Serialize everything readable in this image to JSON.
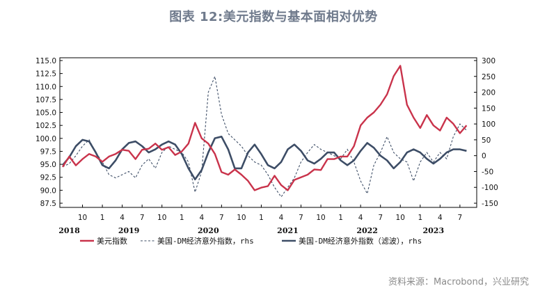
{
  "title": "图表 12:美元指数与基本面相对优势",
  "source": "资料来源：Macrobond，兴业研究",
  "colors": {
    "dxy": "#c9334b",
    "surprise": "#3d4d66",
    "filtered": "#3d4d66",
    "title": "#6f7a8c"
  },
  "chart_data": {
    "type": "line",
    "x_axis": {
      "month_ticks": [
        "10",
        "1",
        "4",
        "7",
        "10",
        "1",
        "4",
        "7",
        "10",
        "1",
        "4",
        "7",
        "10",
        "1",
        "4",
        "7",
        "10",
        "1",
        "4",
        "7"
      ],
      "years": [
        "2018",
        "2019",
        "2020",
        "2021",
        "2022",
        "2023"
      ]
    },
    "y_left": {
      "min": 87.5,
      "max": 115.0,
      "ticks": [
        "115.0",
        "112.5",
        "110.0",
        "107.5",
        "105.0",
        "102.5",
        "100.0",
        "97.5",
        "95.0",
        "92.5",
        "90.0",
        "87.5"
      ]
    },
    "y_right": {
      "min": -150,
      "max": 300,
      "ticks": [
        "300",
        "250",
        "200",
        "150",
        "100",
        "50",
        "0",
        "-50",
        "-100",
        "-150"
      ]
    },
    "series": [
      {
        "name": "美元指数",
        "axis": "left",
        "style": "solid",
        "points": [
          [
            "2018-07",
            94.5
          ],
          [
            "2018-08",
            96.5
          ],
          [
            "2018-09",
            94.8
          ],
          [
            "2018-10",
            96.0
          ],
          [
            "2018-11",
            97.0
          ],
          [
            "2018-12",
            96.5
          ],
          [
            "2019-01",
            95.5
          ],
          [
            "2019-02",
            96.5
          ],
          [
            "2019-03",
            97.0
          ],
          [
            "2019-04",
            97.8
          ],
          [
            "2019-05",
            97.6
          ],
          [
            "2019-06",
            96.0
          ],
          [
            "2019-07",
            97.8
          ],
          [
            "2019-08",
            98.0
          ],
          [
            "2019-09",
            99.0
          ],
          [
            "2019-10",
            97.8
          ],
          [
            "2019-11",
            98.3
          ],
          [
            "2019-12",
            96.8
          ],
          [
            "2020-01",
            97.5
          ],
          [
            "2020-02",
            99.0
          ],
          [
            "2020-03",
            103.0
          ],
          [
            "2020-04",
            100.0
          ],
          [
            "2020-05",
            99.0
          ],
          [
            "2020-06",
            97.0
          ],
          [
            "2020-07",
            93.5
          ],
          [
            "2020-08",
            93.0
          ],
          [
            "2020-09",
            94.0
          ],
          [
            "2020-10",
            93.0
          ],
          [
            "2020-11",
            91.8
          ],
          [
            "2020-12",
            90.0
          ],
          [
            "2021-01",
            90.5
          ],
          [
            "2021-02",
            90.8
          ],
          [
            "2021-03",
            92.8
          ],
          [
            "2021-04",
            91.0
          ],
          [
            "2021-05",
            90.0
          ],
          [
            "2021-06",
            92.0
          ],
          [
            "2021-07",
            92.5
          ],
          [
            "2021-08",
            93.0
          ],
          [
            "2021-09",
            94.0
          ],
          [
            "2021-10",
            93.9
          ],
          [
            "2021-11",
            96.0
          ],
          [
            "2021-12",
            96.0
          ],
          [
            "2022-01",
            96.5
          ],
          [
            "2022-02",
            96.5
          ],
          [
            "2022-03",
            98.5
          ],
          [
            "2022-04",
            102.5
          ],
          [
            "2022-05",
            104.0
          ],
          [
            "2022-06",
            105.0
          ],
          [
            "2022-07",
            106.5
          ],
          [
            "2022-08",
            108.5
          ],
          [
            "2022-09",
            112.0
          ],
          [
            "2022-10",
            114.0
          ],
          [
            "2022-11",
            106.5
          ],
          [
            "2022-12",
            104.0
          ],
          [
            "2023-01",
            102.0
          ],
          [
            "2023-02",
            104.5
          ],
          [
            "2023-03",
            102.5
          ],
          [
            "2023-04",
            101.5
          ],
          [
            "2023-05",
            104.0
          ],
          [
            "2023-06",
            102.8
          ],
          [
            "2023-07",
            101.0
          ],
          [
            "2023-08",
            102.5
          ]
        ]
      },
      {
        "name": "美国-DM经济意外指数，rhs",
        "axis": "right",
        "style": "dashed",
        "points": [
          [
            "2018-07",
            -35
          ],
          [
            "2018-08",
            -25
          ],
          [
            "2018-09",
            0
          ],
          [
            "2018-10",
            30
          ],
          [
            "2018-11",
            50
          ],
          [
            "2018-12",
            10
          ],
          [
            "2019-01",
            -20
          ],
          [
            "2019-02",
            -60
          ],
          [
            "2019-03",
            -70
          ],
          [
            "2019-04",
            -60
          ],
          [
            "2019-05",
            -50
          ],
          [
            "2019-06",
            -70
          ],
          [
            "2019-07",
            -30
          ],
          [
            "2019-08",
            -10
          ],
          [
            "2019-09",
            -40
          ],
          [
            "2019-10",
            10
          ],
          [
            "2019-11",
            30
          ],
          [
            "2019-12",
            20
          ],
          [
            "2020-01",
            10
          ],
          [
            "2020-02",
            -20
          ],
          [
            "2020-03",
            -115
          ],
          [
            "2020-04",
            -50
          ],
          [
            "2020-05",
            200
          ],
          [
            "2020-06",
            250
          ],
          [
            "2020-07",
            130
          ],
          [
            "2020-08",
            70
          ],
          [
            "2020-09",
            50
          ],
          [
            "2020-10",
            30
          ],
          [
            "2020-11",
            0
          ],
          [
            "2020-12",
            -20
          ],
          [
            "2021-01",
            -30
          ],
          [
            "2021-02",
            -60
          ],
          [
            "2021-03",
            -100
          ],
          [
            "2021-04",
            -130
          ],
          [
            "2021-05",
            -100
          ],
          [
            "2021-06",
            -70
          ],
          [
            "2021-07",
            -20
          ],
          [
            "2021-08",
            10
          ],
          [
            "2021-09",
            35
          ],
          [
            "2021-10",
            20
          ],
          [
            "2021-11",
            10
          ],
          [
            "2021-12",
            0
          ],
          [
            "2022-01",
            -10
          ],
          [
            "2022-02",
            20
          ],
          [
            "2022-03",
            -20
          ],
          [
            "2022-04",
            -80
          ],
          [
            "2022-05",
            -120
          ],
          [
            "2022-06",
            -30
          ],
          [
            "2022-07",
            10
          ],
          [
            "2022-08",
            60
          ],
          [
            "2022-09",
            10
          ],
          [
            "2022-10",
            -10
          ],
          [
            "2022-11",
            -20
          ],
          [
            "2022-12",
            -80
          ],
          [
            "2023-01",
            -20
          ],
          [
            "2023-02",
            10
          ],
          [
            "2023-03",
            -20
          ],
          [
            "2023-04",
            10
          ],
          [
            "2023-05",
            -10
          ],
          [
            "2023-06",
            60
          ],
          [
            "2023-07",
            100
          ],
          [
            "2023-08",
            80
          ]
        ]
      },
      {
        "name": "美国-DM经济意外指数（滤波），rhs",
        "axis": "right",
        "style": "solid-thick",
        "points": [
          [
            "2018-07",
            -30
          ],
          [
            "2018-08",
            -5
          ],
          [
            "2018-09",
            30
          ],
          [
            "2018-10",
            50
          ],
          [
            "2018-11",
            45
          ],
          [
            "2018-12",
            10
          ],
          [
            "2019-01",
            -30
          ],
          [
            "2019-02",
            -40
          ],
          [
            "2019-03",
            -15
          ],
          [
            "2019-04",
            20
          ],
          [
            "2019-05",
            40
          ],
          [
            "2019-06",
            45
          ],
          [
            "2019-07",
            30
          ],
          [
            "2019-08",
            10
          ],
          [
            "2019-09",
            20
          ],
          [
            "2019-10",
            35
          ],
          [
            "2019-11",
            45
          ],
          [
            "2019-12",
            35
          ],
          [
            "2020-01",
            5
          ],
          [
            "2020-02",
            -40
          ],
          [
            "2020-03",
            -75
          ],
          [
            "2020-04",
            -45
          ],
          [
            "2020-05",
            10
          ],
          [
            "2020-06",
            55
          ],
          [
            "2020-07",
            60
          ],
          [
            "2020-08",
            20
          ],
          [
            "2020-09",
            -40
          ],
          [
            "2020-10",
            -40
          ],
          [
            "2020-11",
            10
          ],
          [
            "2020-12",
            35
          ],
          [
            "2021-01",
            5
          ],
          [
            "2021-02",
            -30
          ],
          [
            "2021-03",
            -40
          ],
          [
            "2021-04",
            -20
          ],
          [
            "2021-05",
            20
          ],
          [
            "2021-06",
            35
          ],
          [
            "2021-07",
            15
          ],
          [
            "2021-08",
            -15
          ],
          [
            "2021-09",
            -25
          ],
          [
            "2021-10",
            -10
          ],
          [
            "2021-11",
            10
          ],
          [
            "2021-12",
            10
          ],
          [
            "2022-01",
            -15
          ],
          [
            "2022-02",
            -30
          ],
          [
            "2022-03",
            -15
          ],
          [
            "2022-04",
            15
          ],
          [
            "2022-05",
            40
          ],
          [
            "2022-06",
            25
          ],
          [
            "2022-07",
            0
          ],
          [
            "2022-08",
            -15
          ],
          [
            "2022-09",
            -40
          ],
          [
            "2022-10",
            -20
          ],
          [
            "2022-11",
            10
          ],
          [
            "2022-12",
            20
          ],
          [
            "2023-01",
            10
          ],
          [
            "2023-02",
            -10
          ],
          [
            "2023-03",
            -25
          ],
          [
            "2023-04",
            -10
          ],
          [
            "2023-05",
            10
          ],
          [
            "2023-06",
            20
          ],
          [
            "2023-07",
            20
          ],
          [
            "2023-08",
            15
          ]
        ]
      }
    ]
  }
}
